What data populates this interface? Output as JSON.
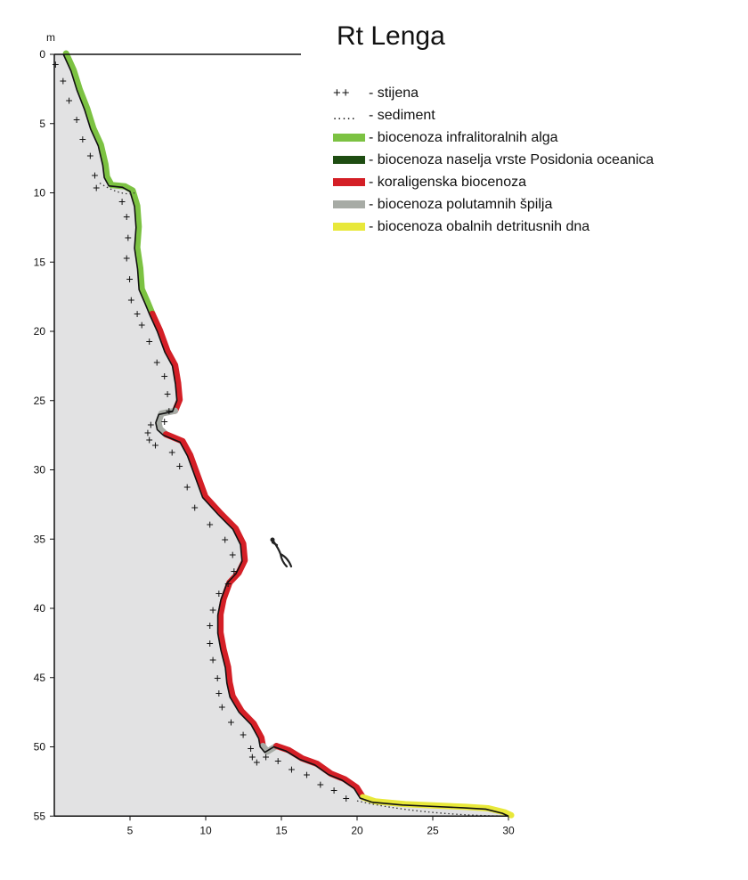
{
  "title": "Rt Lenga",
  "y_unit": "m",
  "y_ticks": [
    0,
    5,
    10,
    15,
    20,
    25,
    30,
    35,
    40,
    45,
    50,
    55
  ],
  "x_ticks": [
    5,
    10,
    15,
    20,
    25,
    30
  ],
  "legend": [
    {
      "symbol": "++",
      "label": "- stijena",
      "type": "text"
    },
    {
      "symbol": ".....",
      "label": "- sediment",
      "type": "text"
    },
    {
      "color": "#7cc242",
      "label": "- biocenoza infralitoralnih alga",
      "type": "bar"
    },
    {
      "color": "#1e4d12",
      "label": "- biocenoza naselja vrste Posidonia oceanica",
      "type": "bar"
    },
    {
      "color": "#d41f26",
      "label": "- koraligenska biocenoza",
      "type": "bar"
    },
    {
      "color": "#a7aba5",
      "label": "- biocenoza polutamnih špilja",
      "type": "bar"
    },
    {
      "color": "#e8e83a",
      "label": "- biocenoza obalnih detritusnih dna",
      "type": "bar"
    }
  ],
  "profile": {
    "rock_points": [
      [
        0.6,
        0
      ],
      [
        1.1,
        1.2
      ],
      [
        1.5,
        2.6
      ],
      [
        2.0,
        4.0
      ],
      [
        2.4,
        5.4
      ],
      [
        2.9,
        6.6
      ],
      [
        3.2,
        8.0
      ],
      [
        3.3,
        8.9
      ],
      [
        3.6,
        9.5
      ],
      [
        4.5,
        9.6
      ],
      [
        5.0,
        9.9
      ],
      [
        5.3,
        11.0
      ],
      [
        5.4,
        12.5
      ],
      [
        5.3,
        14.0
      ],
      [
        5.5,
        15.5
      ],
      [
        5.6,
        17.0
      ],
      [
        6.0,
        18.0
      ],
      [
        6.3,
        18.8
      ],
      [
        6.8,
        20.0
      ],
      [
        7.3,
        21.5
      ],
      [
        7.8,
        22.5
      ],
      [
        8.0,
        23.8
      ],
      [
        8.1,
        25.0
      ],
      [
        7.8,
        25.8
      ],
      [
        6.9,
        26.0
      ],
      [
        6.7,
        26.6
      ],
      [
        6.8,
        27.1
      ],
      [
        7.2,
        27.5
      ],
      [
        8.3,
        28.0
      ],
      [
        8.8,
        29.0
      ],
      [
        9.3,
        30.5
      ],
      [
        9.8,
        32.0
      ],
      [
        10.8,
        33.2
      ],
      [
        11.8,
        34.3
      ],
      [
        12.3,
        35.4
      ],
      [
        12.4,
        36.6
      ],
      [
        12.0,
        37.5
      ],
      [
        11.4,
        38.2
      ],
      [
        11.0,
        39.4
      ],
      [
        10.8,
        40.5
      ],
      [
        10.8,
        41.8
      ],
      [
        11.0,
        43.0
      ],
      [
        11.3,
        44.3
      ],
      [
        11.4,
        45.4
      ],
      [
        11.6,
        46.4
      ],
      [
        12.2,
        47.5
      ],
      [
        13.0,
        48.4
      ],
      [
        13.5,
        49.4
      ],
      [
        13.6,
        50.0
      ],
      [
        13.9,
        50.4
      ],
      [
        14.5,
        50.0
      ],
      [
        15.3,
        50.3
      ],
      [
        16.2,
        50.9
      ],
      [
        17.2,
        51.3
      ],
      [
        18.1,
        52.0
      ],
      [
        19.0,
        52.4
      ],
      [
        19.8,
        53.0
      ],
      [
        20.2,
        53.7
      ],
      [
        21.0,
        54.0
      ],
      [
        23.0,
        54.2
      ],
      [
        25.0,
        54.3
      ],
      [
        27.0,
        54.4
      ],
      [
        28.5,
        54.5
      ],
      [
        29.6,
        54.8
      ],
      [
        30.0,
        55.0
      ]
    ],
    "segments": [
      {
        "from": 0,
        "to": 17,
        "color": "#7cc242"
      },
      {
        "from": 17,
        "to": 23,
        "color": "#d41f26"
      },
      {
        "from": 23,
        "to": 27,
        "color": "#a7aba5"
      },
      {
        "from": 27,
        "to": 48,
        "color": "#d41f26"
      },
      {
        "from": 48,
        "to": 50,
        "color": "#a7aba5"
      },
      {
        "from": 50,
        "to": 57,
        "color": "#d41f26"
      },
      {
        "from": 57,
        "to": 64,
        "color": "#e8e83a"
      }
    ]
  }
}
